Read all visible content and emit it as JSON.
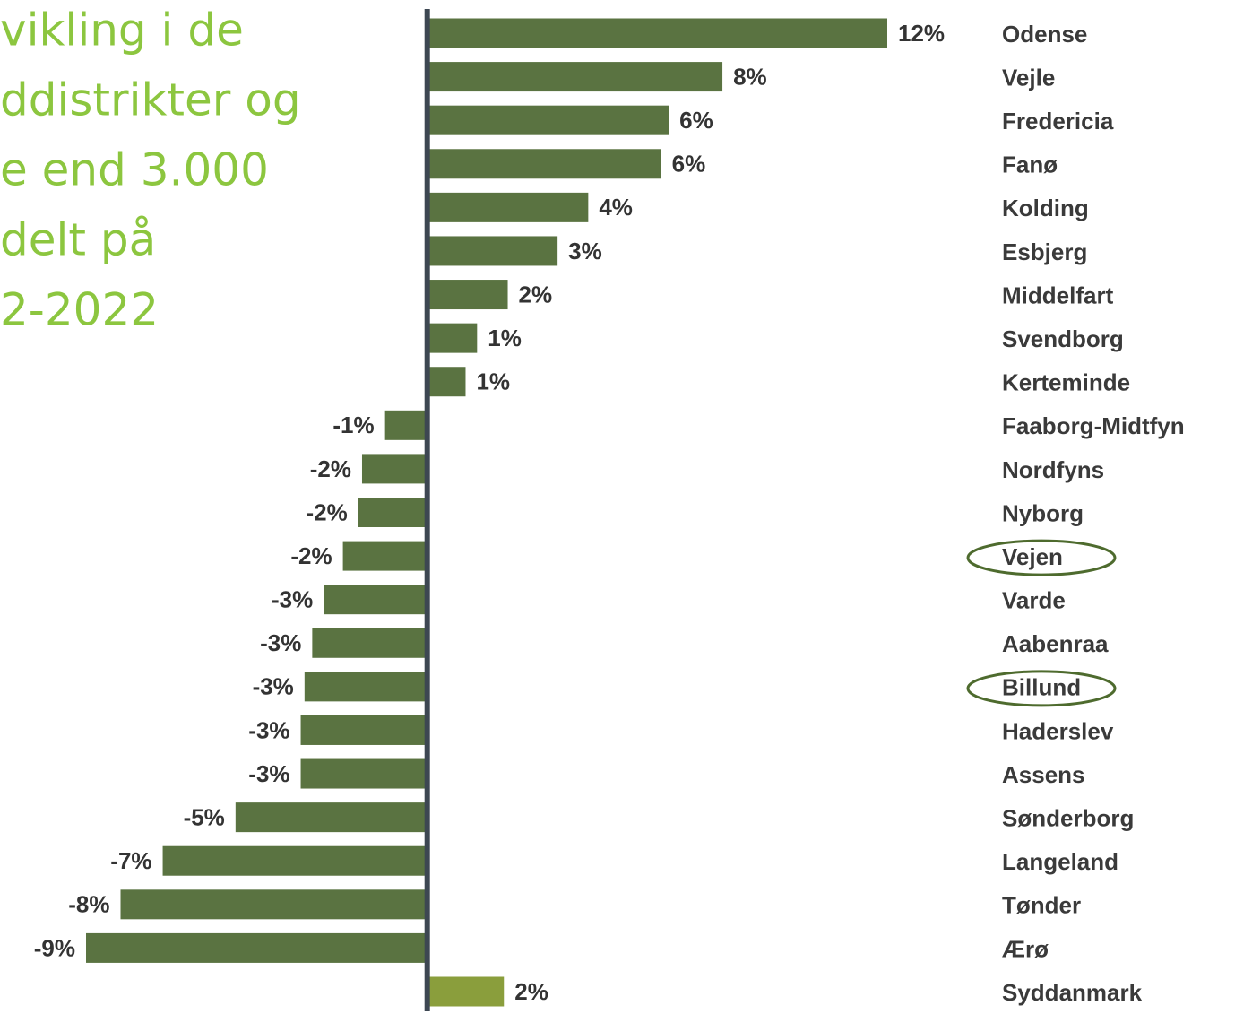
{
  "chart_data": {
    "type": "bar",
    "orientation": "horizontal",
    "title_lines": [
      "vikling i de",
      "ddistrikter og",
      "e end 3.000",
      "delt på",
      "2-2022"
    ],
    "categories": [
      "Odense",
      "Vejle",
      "Fredericia",
      "Fanø",
      "Kolding",
      "Esbjerg",
      "Middelfart",
      "Svendborg",
      "Kerteminde",
      "Faaborg-Midtfyn",
      "Nordfyns",
      "Nyborg",
      "Vejen",
      "Varde",
      "Aabenraa",
      "Billund",
      "Haderslev",
      "Assens",
      "Sønderborg",
      "Langeland",
      "Tønder",
      "Ærø",
      "Syddanmark"
    ],
    "values": [
      12,
      7.7,
      6.3,
      6.1,
      4.2,
      3.4,
      2.1,
      1.3,
      1.0,
      -1.1,
      -1.7,
      -1.8,
      -2.2,
      -2.7,
      -3.0,
      -3.2,
      -3.3,
      -3.3,
      -5.0,
      -6.9,
      -8.0,
      -8.9,
      2.0
    ],
    "value_labels": [
      "12%",
      "8%",
      "6%",
      "6%",
      "4%",
      "3%",
      "2%",
      "1%",
      "1%",
      "-1%",
      "-2%",
      "-2%",
      "-2%",
      "-3%",
      "-3%",
      "-3%",
      "-3%",
      "-3%",
      "-5%",
      "-7%",
      "-8%",
      "-9%",
      "2%"
    ],
    "colors": [
      "#5a7341",
      "#5a7341",
      "#5a7341",
      "#5a7341",
      "#5a7341",
      "#5a7341",
      "#5a7341",
      "#5a7341",
      "#5a7341",
      "#5a7341",
      "#5a7341",
      "#5a7341",
      "#5a7341",
      "#5a7341",
      "#5a7341",
      "#5a7341",
      "#5a7341",
      "#5a7341",
      "#5a7341",
      "#5a7341",
      "#5a7341",
      "#5a7341",
      "#8a9e3c"
    ],
    "circled": [
      "Vejen",
      "Billund"
    ]
  }
}
